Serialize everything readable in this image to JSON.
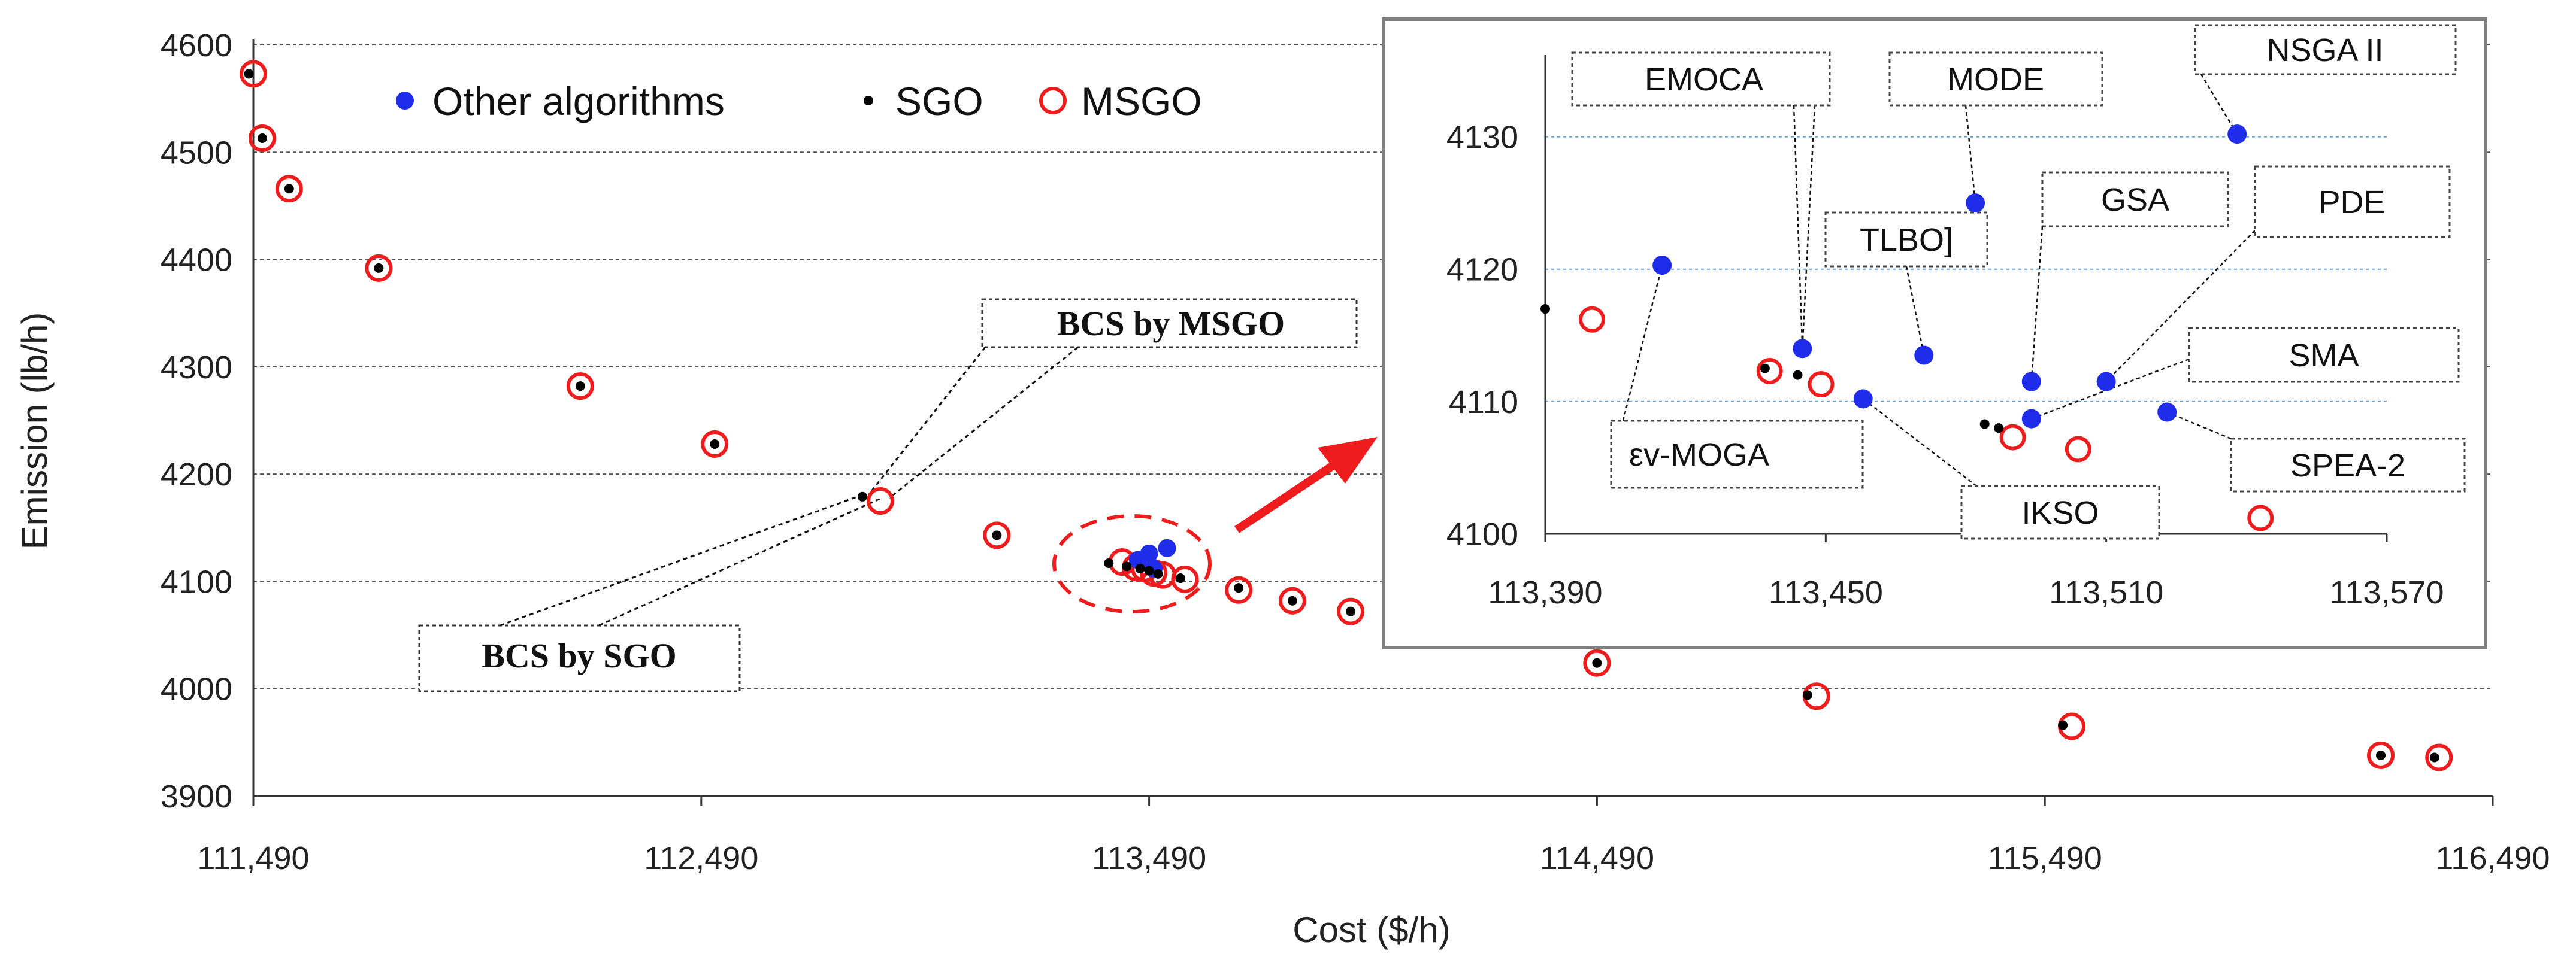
{
  "chart_data": {
    "type": "scatter",
    "xlabel": "Cost ($/h)",
    "ylabel": "Emission (lb/h)",
    "x_ticks": [
      "111,490",
      "112,490",
      "113,490",
      "114,490",
      "115,490",
      "116,490"
    ],
    "y_ticks": [
      "4600",
      "4500",
      "4400",
      "4300",
      "4200",
      "4100",
      "4000",
      "3900"
    ],
    "xlim": [
      111490,
      116490
    ],
    "ylim": [
      3900,
      4600
    ],
    "legend": [
      "Other algorithms",
      "SGO",
      "MSGO"
    ],
    "series": [
      {
        "name": "MSGO",
        "points": [
          [
            111490,
            4573
          ],
          [
            111510,
            4513
          ],
          [
            111570,
            4466
          ],
          [
            111770,
            4392
          ],
          [
            112220,
            4282
          ],
          [
            112520,
            4228
          ],
          [
            112890,
            4175
          ],
          [
            113150,
            4143
          ],
          [
            113430,
            4118
          ],
          [
            113460,
            4113
          ],
          [
            113480,
            4112
          ],
          [
            113500,
            4108
          ],
          [
            113520,
            4106
          ],
          [
            113570,
            4102
          ],
          [
            113690,
            4092
          ],
          [
            113810,
            4082
          ],
          [
            113940,
            4072
          ],
          [
            114490,
            4024
          ],
          [
            114980,
            3993
          ],
          [
            115550,
            3965
          ],
          [
            116240,
            3938
          ],
          [
            116370,
            3936
          ]
        ]
      },
      {
        "name": "SGO",
        "points": [
          [
            111480,
            4573
          ],
          [
            111510,
            4513
          ],
          [
            111570,
            4466
          ],
          [
            111770,
            4392
          ],
          [
            112220,
            4282
          ],
          [
            112520,
            4228
          ],
          [
            112850,
            4179
          ],
          [
            113150,
            4143
          ],
          [
            113400,
            4117
          ],
          [
            113440,
            4114
          ],
          [
            113470,
            4112
          ],
          [
            113490,
            4110
          ],
          [
            113510,
            4107
          ],
          [
            113560,
            4103
          ],
          [
            113690,
            4094
          ],
          [
            113810,
            4082
          ],
          [
            113940,
            4072
          ],
          [
            114490,
            4024
          ],
          [
            114960,
            3994
          ],
          [
            115530,
            3966
          ],
          [
            116240,
            3938
          ],
          [
            116360,
            3936
          ]
        ]
      },
      {
        "name": "Other algorithms",
        "points": [
          [
            113465,
            4120
          ],
          [
            113490,
            4126
          ],
          [
            113530,
            4131
          ],
          [
            113500,
            4112
          ]
        ]
      }
    ],
    "annotations": [
      "BCS by MSGO",
      "BCS by SGO"
    ],
    "inset": {
      "x_ticks": [
        "113,390",
        "113,450",
        "113,510",
        "113,570"
      ],
      "y_ticks": [
        "4130",
        "4120",
        "4110",
        "4100"
      ],
      "xlim": [
        113390,
        113570
      ],
      "ylim": [
        4100,
        4135
      ],
      "other_algorithms": [
        {
          "name": "εv-MOGA",
          "x": 113415,
          "y": 4120.3
        },
        {
          "name": "EMOCA",
          "x": 113445,
          "y": 4114
        },
        {
          "name": "IKSO",
          "x": 113458,
          "y": 4110.2
        },
        {
          "name": "TLBO]",
          "x": 113471,
          "y": 4113.5
        },
        {
          "name": "MODE",
          "x": 113482,
          "y": 4125
        },
        {
          "name": "GSA",
          "x": 113494,
          "y": 4111.5
        },
        {
          "name": "SMA",
          "x": 113494,
          "y": 4108.7
        },
        {
          "name": "PDE",
          "x": 113510,
          "y": 4111.5
        },
        {
          "name": "SPEA-2",
          "x": 113523,
          "y": 4109.2
        },
        {
          "name": "NSGA II",
          "x": 113538,
          "y": 4130.2
        }
      ],
      "sgo": [
        [
          113390,
          4117
        ],
        [
          113437,
          4112.5
        ],
        [
          113444,
          4112
        ],
        [
          113484,
          4108.3
        ],
        [
          113487,
          4108
        ]
      ],
      "msgo": [
        [
          113400,
          4116.2
        ],
        [
          113438,
          4112.3
        ],
        [
          113449,
          4111.3
        ],
        [
          113490,
          4107.3
        ],
        [
          113504,
          4106.4
        ],
        [
          113543,
          4101.2
        ]
      ]
    }
  },
  "colors": {
    "other": "#1f2dea",
    "sgo": "#000000",
    "msgo": "#ee1c1c",
    "grid_inset": "#5fa0d0",
    "arrow": "#ee1c1c"
  }
}
